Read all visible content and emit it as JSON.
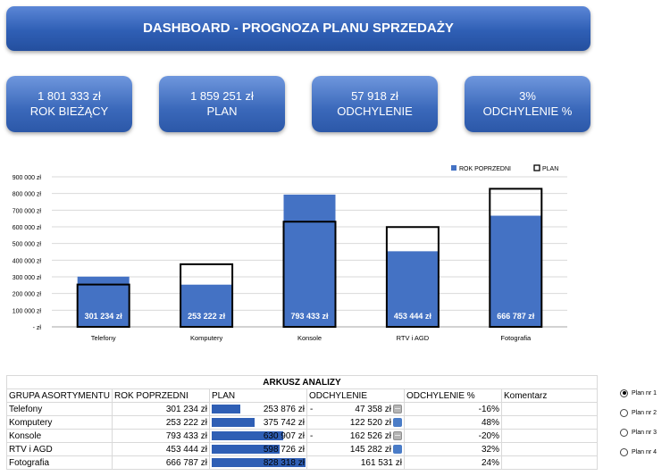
{
  "header": {
    "title": "DASHBOARD - PROGNOZA PLANU SPRZEDAŻY"
  },
  "kpis": [
    {
      "value": "1 801 333 zł",
      "label": "ROK BIEŻĄCY"
    },
    {
      "value": "1 859 251 zł",
      "label": "PLAN"
    },
    {
      "value": "57 918 zł",
      "label": "ODCHYLENIE"
    },
    {
      "value": "3%",
      "label": "ODCHYLENIE %"
    }
  ],
  "colors": {
    "accent": "#2f5fb5",
    "bar": "#4472c4"
  },
  "chart_data": {
    "type": "bar",
    "categories": [
      "Telefony",
      "Komputery",
      "Konsole",
      "RTV i AGD",
      "Fotografia"
    ],
    "series": [
      {
        "name": "ROK POPRZEDNI",
        "values": [
          301234,
          253222,
          793433,
          453444,
          666787
        ],
        "color": "#4472c4"
      },
      {
        "name": "PLAN",
        "values": [
          253876,
          375742,
          630907,
          598726,
          828318
        ],
        "style": "outline"
      }
    ],
    "data_labels": [
      "301 234 zł",
      "253 222 zł",
      "793 433 zł",
      "453 444 zł",
      "666 787 zł"
    ],
    "y_ticks": [
      0,
      100000,
      200000,
      300000,
      400000,
      500000,
      600000,
      700000,
      800000,
      900000
    ],
    "y_tick_labels": [
      "- zł",
      "100 000 zł",
      "200 000 zł",
      "300 000 zł",
      "400 000 zł",
      "500 000 zł",
      "600 000 zł",
      "700 000 zł",
      "800 000 zł",
      "900 000 zł"
    ],
    "ylim": [
      0,
      900000
    ],
    "grid": true,
    "legend": "top-right"
  },
  "analysis": {
    "title": "ARKUSZ ANALIZY",
    "headers": [
      "GRUPA ASORTYMENTU",
      "ROK POPRZEDNI",
      "PLAN",
      "ODCHYLENIE",
      "ODCHYLENIE %",
      "Komentarz"
    ],
    "plan_max": 828318,
    "rows": [
      {
        "group": "Telefony",
        "prev": "301 234 zł",
        "plan": "253 876 zł",
        "plan_value": 253876,
        "dev_sign": "-",
        "dev": "47 358 zł",
        "trend": "down",
        "pct": "-16%",
        "comment": ""
      },
      {
        "group": "Komputery",
        "prev": "253 222 zł",
        "plan": "375 742 zł",
        "plan_value": 375742,
        "dev_sign": "",
        "dev": "122 520 zł",
        "trend": "up",
        "pct": "48%",
        "comment": ""
      },
      {
        "group": "Konsole",
        "prev": "793 433 zł",
        "plan": "630 907 zł",
        "plan_value": 630907,
        "dev_sign": "-",
        "dev": "162 526 zł",
        "trend": "down",
        "pct": "-20%",
        "comment": ""
      },
      {
        "group": "RTV i AGD",
        "prev": "453 444 zł",
        "plan": "598 726 zł",
        "plan_value": 598726,
        "dev_sign": "",
        "dev": "145 282 zł",
        "trend": "up",
        "pct": "32%",
        "comment": ""
      },
      {
        "group": "Fotografia",
        "prev": "666 787 zł",
        "plan": "828 318 zł",
        "plan_value": 828318,
        "dev_sign": "",
        "dev": "161 531 zł",
        "trend": "none",
        "pct": "24%",
        "comment": ""
      }
    ]
  },
  "plan_options": {
    "selected": "Plan nr 1",
    "items": [
      "Plan nr 1",
      "Plan nr 2",
      "Plan nr 3",
      "Plan nr 4"
    ]
  }
}
